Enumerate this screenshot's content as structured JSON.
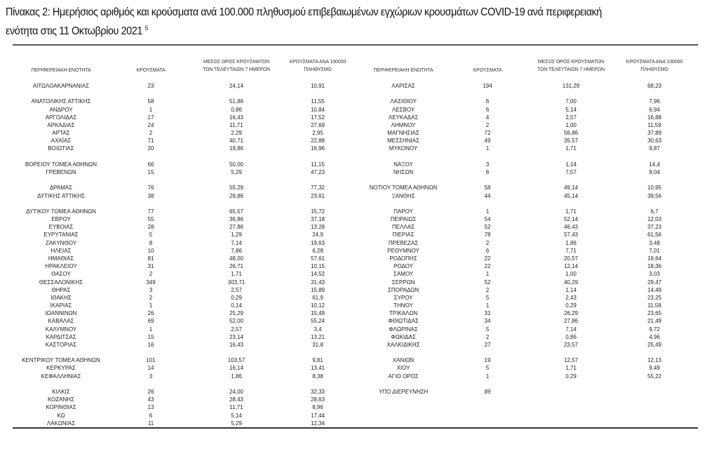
{
  "title": {
    "line1": "Πίνακας 2: Ημερήσιος αριθμός και κρούσματα ανά 100.000 πληθυσμού επιβεβαιωμένων εγχώριων κρουσμάτων COVID-19 ανά περιφερειακή",
    "line2": "ενότητα στις 11 Οκτωβρίου 2021",
    "footnote": "5"
  },
  "headers": {
    "region": "ΠΕΡΙΦΕΡΕΙΑΚΗ ΕΝΟΤΗΤΑ",
    "cases": "ΚΡΟΥΣΜΑΤΑ",
    "avg7_line1": "ΜΕΣΟΣ ΟΡΟΣ ΚΡΟΥΣΜΑΤΩΝ",
    "avg7_line2": "ΤΩΝ ΤΕΛΕΥΤΑΙΩΝ 7 ΗΜΕΡΩΝ",
    "per100k_line1": "ΚΡΟΥΣΜΑΤΑ ΑΝΑ 100000",
    "per100k_line2": "ΠΛΗΘΥΣΜΟ"
  },
  "left_groups": [
    [
      [
        "ΑΙΤΩΛΟΑΚΑΡΝΑΝΙΑΣ",
        "23",
        "24,14",
        "10,91"
      ]
    ],
    [
      [
        "ΑΝΑΤΟΛΙΚΗΣ ΑΤΤΙΚΗΣ",
        "58",
        "51,86",
        "11,55"
      ],
      [
        "ΑΝΔΡΟΥ",
        "1",
        "0,86",
        "10,84"
      ],
      [
        "ΑΡΓΟΛΙΔΑΣ",
        "17",
        "16,43",
        "17,52"
      ],
      [
        "ΑΡΚΑΔΙΑΣ",
        "24",
        "11,71",
        "27,69"
      ],
      [
        "ΑΡΤΑΣ",
        "2",
        "2,29",
        "2,95"
      ],
      [
        "ΑΧΑΪΑΣ",
        "71",
        "40,71",
        "22,88"
      ],
      [
        "ΒΟΙΩΤΙΑΣ",
        "20",
        "19,86",
        "16,96"
      ]
    ],
    [
      [
        "ΒΟΡΕΙΟΥ ΤΟΜΕΑ ΑΘΗΝΩΝ",
        "66",
        "50,00",
        "11,15"
      ],
      [
        "ΓΡΕΒΕΝΩΝ",
        "15",
        "5,29",
        "47,23"
      ]
    ],
    [
      [
        "ΔΡΑΜΑΣ",
        "76",
        "55,29",
        "77,32"
      ],
      [
        "ΔΥΤΙΚΗΣ ΑΤΤΙΚΗΣ",
        "38",
        "29,86",
        "23,61"
      ]
    ],
    [
      [
        "ΔΥΤΙΚΟΥ ΤΟΜΕΑ ΑΘΗΝΩΝ",
        "77",
        "65,57",
        "15,72"
      ],
      [
        "ΕΒΡΟΥ",
        "55",
        "36,86",
        "37,18"
      ],
      [
        "ΕΥΒΟΙΑΣ",
        "28",
        "27,86",
        "13,28"
      ],
      [
        "ΕΥΡΥΤΑΝΙΑΣ",
        "5",
        "1,29",
        "24,9"
      ],
      [
        "ΖΑΚΥΝΘΟΥ",
        "8",
        "7,14",
        "19,63"
      ],
      [
        "ΗΛΕΙΑΣ",
        "10",
        "7,86",
        "6,28"
      ],
      [
        "ΗΜΑΘΙΑΣ",
        "81",
        "48,00",
        "57,61"
      ],
      [
        "ΗΡΑΚΛΕΙΟΥ",
        "31",
        "26,71",
        "10,15"
      ],
      [
        "ΘΑΣΟΥ",
        "2",
        "1,71",
        "14,52"
      ],
      [
        "ΘΕΣΣΑΛΟΝΙΚΗΣ",
        "349",
        "303,71",
        "31,43"
      ],
      [
        "ΘΗΡΑΣ",
        "3",
        "2,57",
        "15,89"
      ],
      [
        "ΙΘΑΚΗΣ",
        "2",
        "0,29",
        "61,9"
      ],
      [
        "ΙΚΑΡΙΑΣ",
        "1",
        "0,14",
        "10,12"
      ],
      [
        "ΙΩΑΝΝΙΝΩΝ",
        "26",
        "25,29",
        "15,49"
      ],
      [
        "ΚΑΒΑΛΑΣ",
        "69",
        "52,00",
        "55,24"
      ],
      [
        "ΚΑΛΥΜΝΟΥ",
        "1",
        "2,57",
        "3,4"
      ],
      [
        "ΚΑΡΔΙΤΣΑΣ",
        "15",
        "23,14",
        "13,21"
      ],
      [
        "ΚΑΣΤΟΡΙΑΣ",
        "16",
        "16,43",
        "31,8"
      ]
    ],
    [
      [
        "ΚΕΝΤΡΙΚΟΥ ΤΟΜΕΑ ΑΘΗΝΩΝ",
        "101",
        "103,57",
        "9,81"
      ],
      [
        "ΚΕΡΚΥΡΑΣ",
        "14",
        "16,14",
        "13,41"
      ],
      [
        "ΚΕΦΑΛΛΗΝΙΑΣ",
        "3",
        "1,86",
        "8,38"
      ]
    ],
    [
      [
        "ΚΙΛΚΙΣ",
        "26",
        "24,00",
        "32,33"
      ],
      [
        "ΚΟΖΑΝΗΣ",
        "43",
        "28,43",
        "28,63"
      ],
      [
        "ΚΟΡΙΝΘΙΑΣ",
        "13",
        "11,71",
        "8,96"
      ],
      [
        "ΚΩ",
        "6",
        "5,14",
        "17,44"
      ],
      [
        "ΛΑΚΩΝΙΑΣ",
        "11",
        "5,29",
        "12,34"
      ]
    ]
  ],
  "right_groups": [
    [
      [
        "ΛΑΡΙΣΑΣ",
        "194",
        "131,29",
        "68,23"
      ]
    ],
    [
      [
        "ΛΑΣΙΘΙΟΥ",
        "6",
        "7,00",
        "7,96"
      ],
      [
        "ΛΕΣΒΟΥ",
        "6",
        "5,14",
        "6,94"
      ],
      [
        "ΛΕΥΚΑΔΑΣ",
        "4",
        "2,57",
        "16,88"
      ],
      [
        "ΛΗΜΝΟΥ",
        "2",
        "1,00",
        "11,59"
      ],
      [
        "ΜΑΓΝΗΣΙΑΣ",
        "72",
        "56,86",
        "37,89"
      ],
      [
        "ΜΕΣΣΗΝΙΑΣ",
        "49",
        "35,57",
        "30,63"
      ],
      [
        "ΜΥΚΟΝΟΥ",
        "1",
        "1,71",
        "9,87"
      ]
    ],
    [
      [
        "ΝΑΞΟΥ",
        "3",
        "1,14",
        "14,4"
      ],
      [
        "ΝΗΣΩΝ",
        "6",
        "7,57",
        "8,04"
      ]
    ],
    [
      [
        "ΝΟΤΙΟΥ ΤΟΜΕΑ ΑΘΗΝΩΝ",
        "58",
        "49,14",
        "10,95"
      ],
      [
        "ΞΑΝΘΗΣ",
        "44",
        "45,14",
        "39,56"
      ]
    ],
    [
      [
        "ΠΑΡΟΥ",
        "1",
        "1,71",
        "6,7"
      ],
      [
        "ΠΕΙΡΑΙΩΣ",
        "54",
        "52,14",
        "12,03"
      ],
      [
        "ΠΕΛΛΑΣ",
        "52",
        "46,43",
        "37,23"
      ],
      [
        "ΠΙΕΡΙΑΣ",
        "78",
        "57,43",
        "61,56"
      ],
      [
        "ΠΡΕΒΕΖΑΣ",
        "2",
        "1,86",
        "3,48"
      ],
      [
        "ΡΕΘΥΜΝΟΥ",
        "6",
        "7,71",
        "7,01"
      ],
      [
        "ΡΟΔΟΠΗΣ",
        "22",
        "20,57",
        "19,64"
      ],
      [
        "ΡΟΔΟΥ",
        "22",
        "12,14",
        "18,36"
      ],
      [
        "ΣΑΜΟΥ",
        "1",
        "1,00",
        "3,03"
      ],
      [
        "ΣΕΡΡΩΝ",
        "52",
        "40,29",
        "29,47"
      ],
      [
        "ΣΠΟΡΑΔΩΝ",
        "2",
        "1,14",
        "14,49"
      ],
      [
        "ΣΥΡΟΥ",
        "5",
        "2,43",
        "23,25"
      ],
      [
        "ΤΗΝΟΥ",
        "1",
        "0,29",
        "11,58"
      ],
      [
        "ΤΡΙΚΑΛΩΝ",
        "31",
        "26,29",
        "23,65"
      ],
      [
        "ΦΘΙΩΤΙΔΑΣ",
        "34",
        "27,86",
        "21,49"
      ],
      [
        "ΦΛΩΡΙΝΑΣ",
        "5",
        "7,14",
        "9,72"
      ],
      [
        "ΦΩΚΙΔΑΣ",
        "2",
        "0,86",
        "4,96"
      ],
      [
        "ΧΑΛΚΙΔΙΚΗΣ",
        "27",
        "23,57",
        "25,49"
      ]
    ],
    [
      [
        "ΧΑΝΙΩΝ",
        "19",
        "12,57",
        "12,13"
      ],
      [
        "ΧΙΟΥ",
        "5",
        "1,71",
        "9,49"
      ],
      [
        "ΑΓΙΟ ΟΡΟΣ",
        "1",
        "0,29",
        "55,22"
      ]
    ],
    [
      [
        "ΥΠΟ ΔΙΕΡΕΥΝΗΣΗ",
        "89",
        "",
        ""
      ]
    ]
  ]
}
